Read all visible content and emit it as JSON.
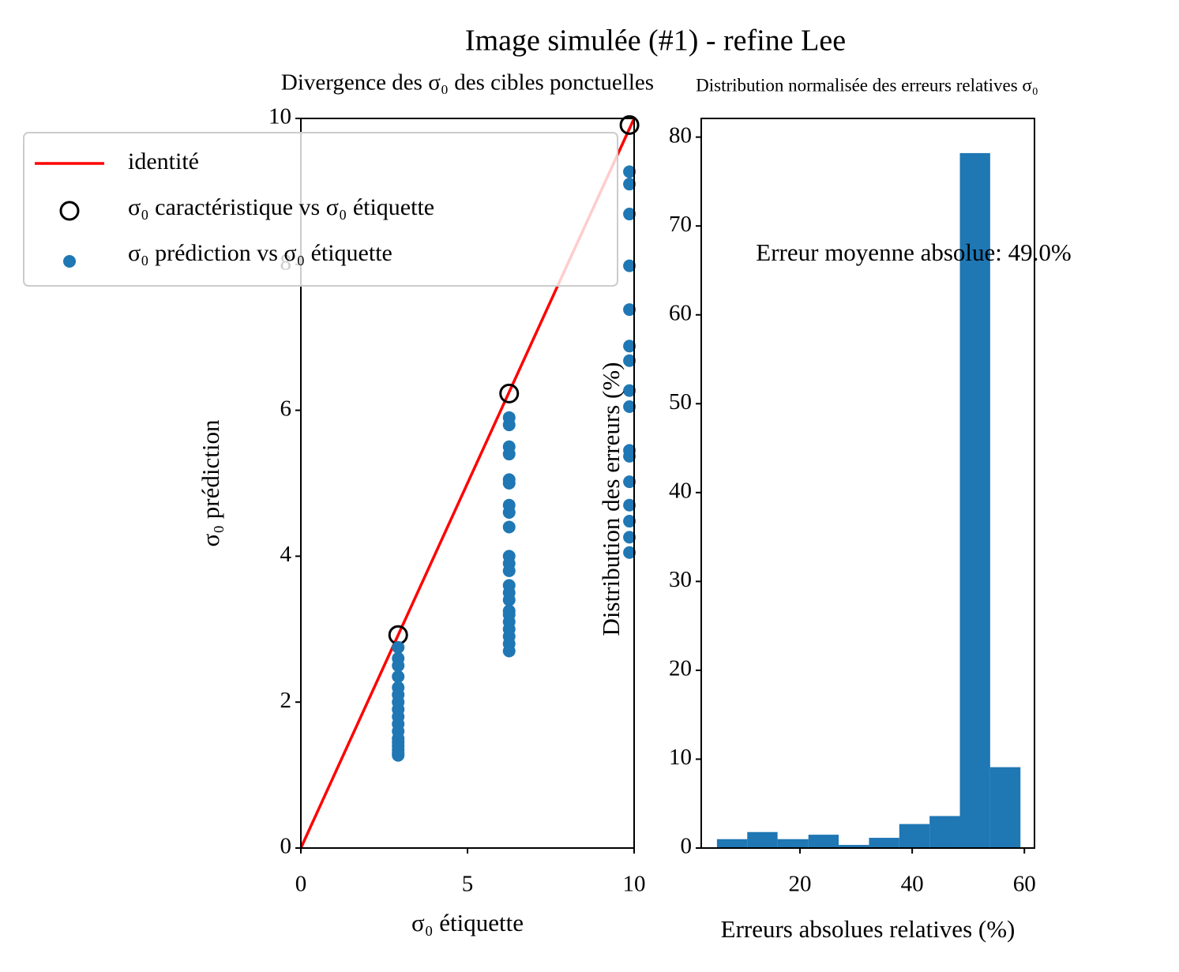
{
  "title": "Image simulée (#1) - refine Lee",
  "chart_data": [
    {
      "type": "scatter",
      "title": "Divergence des σ₀ des cibles ponctuelles",
      "xlabel": "σ₀ étiquette",
      "ylabel": "σ₀ prédiction",
      "xlim": [
        0,
        10
      ],
      "ylim": [
        0,
        10
      ],
      "xticks": [
        0,
        5,
        10
      ],
      "yticks": [
        0,
        2,
        4,
        6,
        8,
        10
      ],
      "legend": "upper left",
      "series": [
        {
          "name": "identité",
          "style": "line",
          "color": "#ff0000",
          "x": [
            0,
            10
          ],
          "y": [
            0,
            10
          ]
        },
        {
          "name": "σ₀ caractéristique vs σ₀ étiquette",
          "style": "hollow",
          "color": "#000000",
          "x": [
            2.92,
            6.25,
            9.86
          ],
          "y": [
            2.92,
            6.23,
            9.91
          ]
        },
        {
          "name": "σ₀ prédiction vs σ₀ étiquette",
          "style": "filled",
          "color": "#1f77b4",
          "x": [
            2.92,
            2.92,
            2.92,
            2.92,
            2.92,
            2.92,
            2.92,
            2.92,
            2.92,
            2.92,
            2.92,
            2.92,
            2.92,
            2.92,
            2.92,
            2.92,
            2.92,
            6.25,
            6.25,
            6.25,
            6.25,
            6.25,
            6.25,
            6.25,
            6.25,
            6.25,
            6.25,
            6.25,
            6.25,
            6.25,
            6.25,
            6.25,
            6.25,
            6.25,
            6.25,
            6.25,
            6.25,
            6.25,
            6.25,
            9.86,
            9.86,
            9.86,
            9.86,
            9.86,
            9.86,
            9.86,
            9.86,
            9.86,
            9.86,
            9.86,
            9.86,
            9.86,
            9.86,
            9.86,
            9.86
          ],
          "y": [
            2.75,
            2.6,
            2.5,
            2.35,
            2.2,
            2.1,
            2.0,
            1.9,
            1.8,
            1.7,
            1.6,
            1.5,
            1.45,
            1.4,
            1.35,
            1.3,
            1.27,
            5.9,
            5.8,
            5.5,
            5.4,
            5.05,
            5.0,
            4.7,
            4.6,
            4.4,
            4.0,
            3.9,
            3.8,
            3.6,
            3.5,
            3.4,
            3.25,
            3.2,
            3.1,
            3.0,
            2.9,
            2.8,
            2.7,
            9.27,
            9.1,
            8.69,
            7.98,
            7.38,
            6.88,
            6.68,
            6.27,
            6.05,
            5.45,
            5.37,
            5.02,
            4.7,
            4.48,
            4.26,
            4.05
          ]
        }
      ]
    },
    {
      "type": "histogram",
      "title": "Distribution normalisée des erreurs relatives σ₀",
      "xlabel": "Erreurs absolues relatives (%)",
      "ylabel": "Distribution des erreurs (%)",
      "annotation": "Erreur moyenne absolue: 49.0%",
      "color": "#1f77b4",
      "xlim": [
        2.4,
        61.8
      ],
      "ylim": [
        0,
        82.1
      ],
      "xticks": [
        20,
        40,
        60
      ],
      "yticks": [
        0,
        10,
        20,
        30,
        40,
        50,
        60,
        70,
        80
      ],
      "bins": [
        5.2,
        10.6,
        16.0,
        21.5,
        26.9,
        32.3,
        37.7,
        43.1,
        48.5,
        53.9,
        59.3
      ],
      "counts": [
        1.0,
        1.8,
        1.0,
        1.5,
        0.35,
        1.15,
        2.7,
        3.6,
        78.2,
        9.1
      ]
    }
  ]
}
